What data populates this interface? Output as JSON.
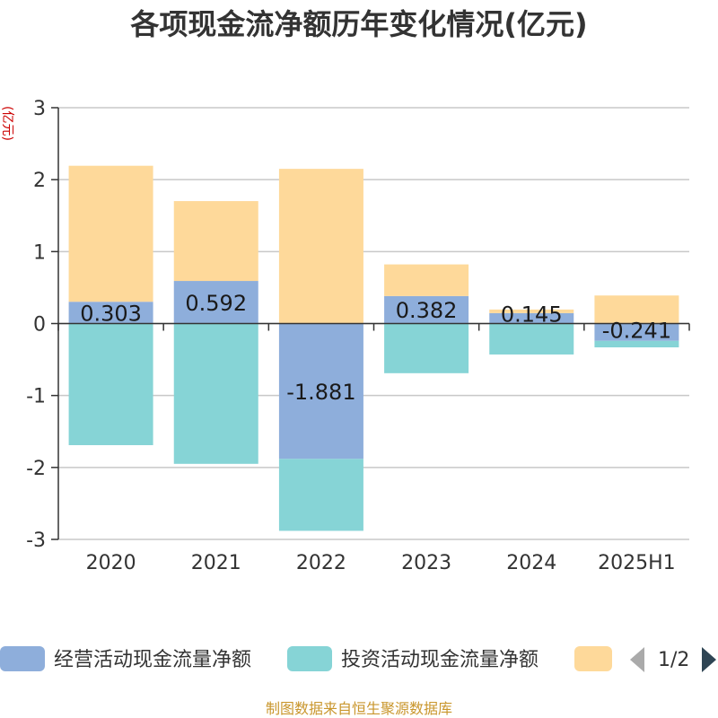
{
  "chart_data": {
    "type": "bar",
    "stacked": true,
    "title": "各项现金流净额历年变化情况(亿元)",
    "ylabel": "(亿元)",
    "ylim": [
      -3,
      3
    ],
    "yticks": [
      3,
      2,
      1,
      0,
      -1,
      -2,
      -3
    ],
    "grid": true,
    "categories": [
      "2020",
      "2021",
      "2022",
      "2023",
      "2024",
      "2025H1"
    ],
    "series": [
      {
        "name": "经营活动现金流量净额",
        "color": "#8eaedb",
        "values": [
          0.303,
          0.592,
          -1.881,
          0.382,
          0.145,
          -0.241
        ]
      },
      {
        "name": "投资活动现金流量净额",
        "color": "#86d4d6",
        "values": [
          -1.69,
          -1.95,
          -1.0,
          -0.69,
          -0.43,
          -0.09
        ]
      },
      {
        "name": "",
        "color": "#fed99a",
        "values": [
          1.89,
          1.11,
          2.15,
          0.44,
          0.05,
          0.39
        ]
      }
    ],
    "data_labels": [
      "0.303",
      "0.592",
      "-1.881",
      "0.382",
      "0.145",
      "-0.241"
    ]
  },
  "legend": {
    "page_indicator": "1/2",
    "left_arrow_color": "#aaaaaa",
    "right_arrow_color": "#2f4554"
  },
  "source_note": "制图数据来自恒生聚源数据库"
}
